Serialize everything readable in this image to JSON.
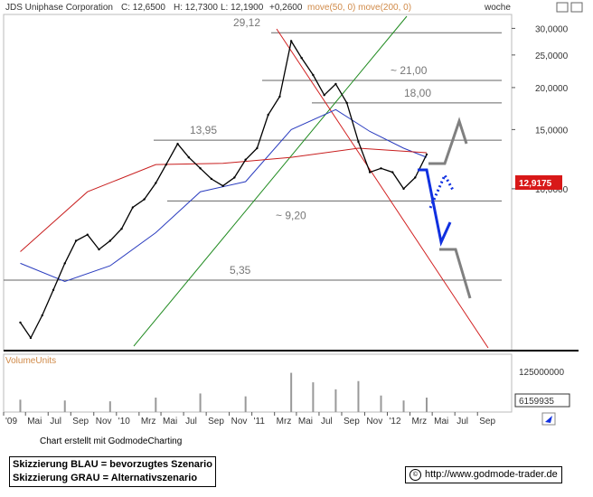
{
  "header": {
    "title": "JDS Uniphase Corporation",
    "close": "C: 12,6500",
    "high": "H: 12,7300",
    "low": "L: 12,1900",
    "change": "+0,2600",
    "ma_label": "move(50, 0)  move(200, 0)",
    "period": "woche"
  },
  "colors": {
    "price": "#000000",
    "ma50": "#2a3cbf",
    "ma200": "#c81e1e",
    "trend_up": "#1f8a1f",
    "trend_down": "#d22020",
    "scenario_blue": "#1030e0",
    "scenario_gray": "#808080",
    "last_price_badge": "#d81818",
    "volume": "#999999"
  },
  "chart_data": {
    "type": "line",
    "title": "JDS Uniphase Corporation",
    "xlabel": "",
    "ylabel": "",
    "ylim": [
      3.3,
      33
    ],
    "x_ticks": [
      "'09",
      "Mai",
      "Jul",
      "Sep",
      "Nov",
      "'10",
      "Mrz",
      "Mai",
      "Jul",
      "Sep",
      "Nov",
      "'11",
      "Mrz",
      "Mai",
      "Jul",
      "Sep",
      "Nov",
      "'12",
      "Mrz",
      "Mai",
      "Jul",
      "Sep"
    ],
    "y_ticks": [
      "30,0000",
      "25,0000",
      "20,0000",
      "15,0000",
      "10,0000"
    ],
    "last_price": "12,9175",
    "levels": [
      {
        "label": "29,12",
        "value": 29.12
      },
      {
        "label": "~ 21,00",
        "value": 21.0
      },
      {
        "label": "18,00",
        "value": 18.0
      },
      {
        "label": "13,95",
        "value": 13.95
      },
      {
        "label": "~ 9,20",
        "value": 9.2
      },
      {
        "label": "5,35",
        "value": 5.35
      }
    ],
    "series": [
      {
        "name": "JDS Uniphase Corporation",
        "x": [
          "2009-02",
          "2009-03",
          "2009-04",
          "2009-05",
          "2009-06",
          "2009-07",
          "2009-08",
          "2009-09",
          "2009-10",
          "2009-11",
          "2009-12",
          "2010-01",
          "2010-02",
          "2010-03",
          "2010-04",
          "2010-05",
          "2010-06",
          "2010-07",
          "2010-08",
          "2010-09",
          "2010-10",
          "2010-11",
          "2010-12",
          "2011-01",
          "2011-02",
          "2011-03",
          "2011-04",
          "2011-05",
          "2011-06",
          "2011-07",
          "2011-08",
          "2011-09",
          "2011-10",
          "2011-11",
          "2011-12",
          "2012-01",
          "2012-02"
        ],
        "values": [
          4.0,
          3.6,
          4.2,
          5.0,
          6.0,
          7.0,
          7.3,
          6.6,
          7.0,
          7.6,
          8.8,
          9.3,
          10.4,
          11.8,
          13.6,
          12.4,
          11.5,
          10.7,
          10.2,
          10.8,
          12.2,
          13.2,
          16.6,
          18.8,
          27.5,
          24.5,
          21.8,
          19.0,
          20.5,
          18.0,
          13.8,
          11.2,
          11.5,
          11.2,
          10.0,
          10.8,
          12.65
        ]
      },
      {
        "name": "move(50, 0)",
        "x": [
          "2009-02",
          "2009-06",
          "2009-10",
          "2010-02",
          "2010-06",
          "2010-10",
          "2011-02",
          "2011-06",
          "2011-09",
          "2011-12",
          "2012-02"
        ],
        "values": [
          6.0,
          5.3,
          5.9,
          7.4,
          9.8,
          10.5,
          15.0,
          17.2,
          14.8,
          13.2,
          12.4
        ]
      },
      {
        "name": "move(200, 0)",
        "x": [
          "2009-02",
          "2009-08",
          "2010-02",
          "2010-08",
          "2011-02",
          "2011-08",
          "2011-11",
          "2012-02"
        ],
        "values": [
          6.5,
          9.8,
          11.8,
          11.9,
          12.4,
          13.2,
          13.0,
          12.8
        ]
      }
    ],
    "volume": {
      "label": "VolumeUnits",
      "y_ticks": [
        "125000000"
      ],
      "last": "6159935",
      "x": [
        "2009-02",
        "2009-06",
        "2009-10",
        "2010-02",
        "2010-06",
        "2010-10",
        "2011-02",
        "2011-04",
        "2011-06",
        "2011-08",
        "2011-10",
        "2011-12",
        "2012-02"
      ],
      "values": [
        30000000,
        28000000,
        26000000,
        35000000,
        45000000,
        38000000,
        95000000,
        72000000,
        55000000,
        75000000,
        40000000,
        28000000,
        35000000
      ]
    }
  },
  "footer": {
    "credit": "Chart erstellt mit GodmodeCharting",
    "legend_blue": "Skizzierung BLAU = bevorzugtes Szenario",
    "legend_gray": "Skizzierung GRAU = Alternativszenario",
    "url": "http://www.godmode-trader.de"
  }
}
